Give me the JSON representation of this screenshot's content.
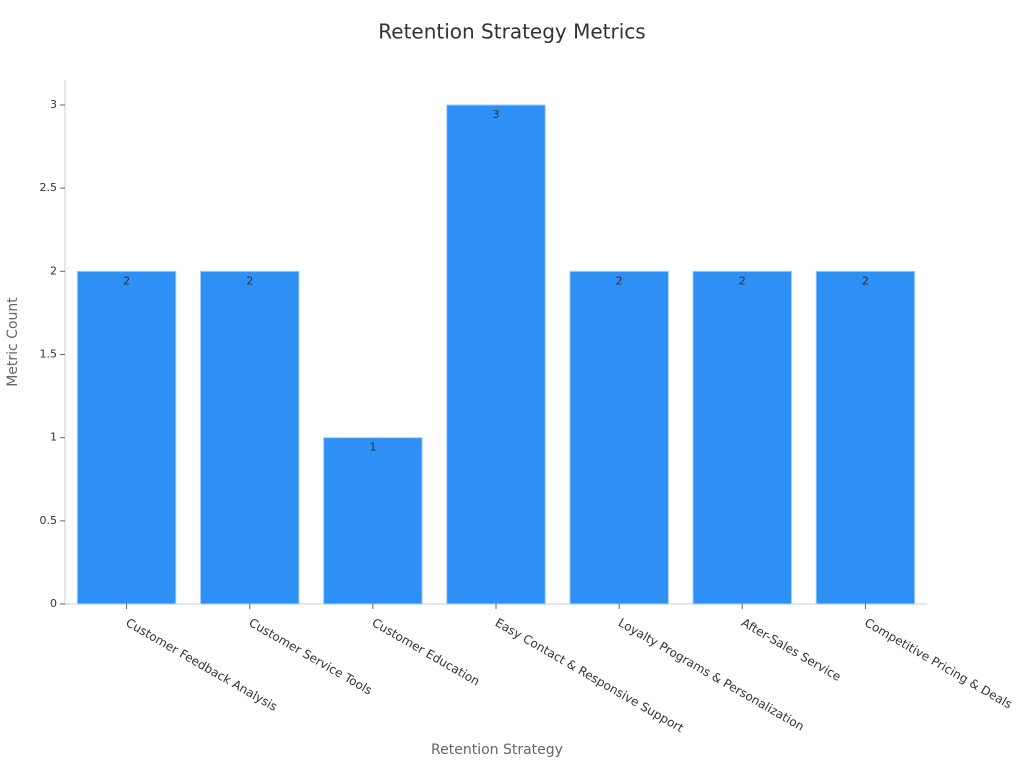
{
  "chart_data": {
    "type": "bar",
    "title": "Retention Strategy Metrics",
    "x_label": "Retention Strategy",
    "y_label": "Metric Count",
    "categories": [
      "Customer Feedback Analysis",
      "Customer Service Tools",
      "Customer Education",
      "Easy Contact & Responsive Support",
      "Loyalty Programs & Personalization",
      "After-Sales Service",
      "Competitive Pricing & Deals"
    ],
    "values": [
      2,
      2,
      1,
      3,
      2,
      2,
      2
    ],
    "color": "#2e8ff5",
    "ylim": [
      0,
      3.15
    ],
    "yticks": [
      0,
      0.5,
      1,
      1.5,
      2,
      2.5,
      3
    ],
    "grid": false
  }
}
